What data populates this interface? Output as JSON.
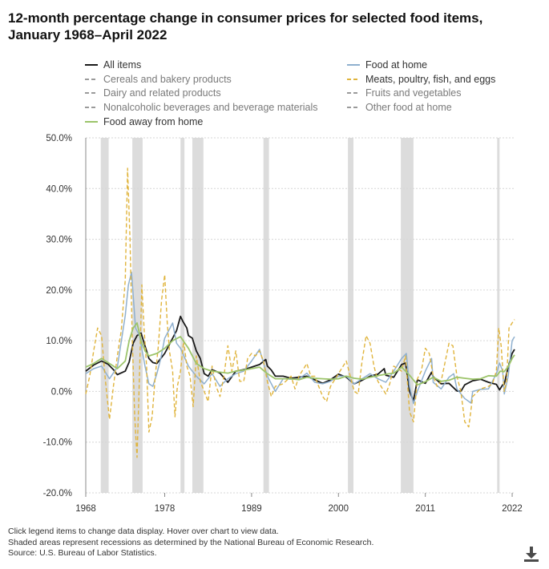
{
  "title": {
    "line1": "12-month percentage change in consumer prices for selected food items,",
    "line2": "January 1968–April 2022"
  },
  "legend": [
    {
      "label": "All items",
      "color": "#1a1a1a",
      "style": "solid",
      "active": true
    },
    {
      "label": "Food at home",
      "color": "#8fb0cf",
      "style": "solid",
      "active": true
    },
    {
      "label": "Cereals and bakery products",
      "color": "#9a9a9a",
      "style": "dashed",
      "active": false
    },
    {
      "label": "Meats, poultry, fish, and eggs",
      "color": "#e0b43c",
      "style": "dashed",
      "active": true
    },
    {
      "label": "Dairy and related products",
      "color": "#9a9a9a",
      "style": "dashed",
      "active": false
    },
    {
      "label": "Fruits and vegetables",
      "color": "#9a9a9a",
      "style": "dashed",
      "active": false
    },
    {
      "label": "Nonalcoholic beverages and beverage materials",
      "color": "#9a9a9a",
      "style": "dashed",
      "active": false
    },
    {
      "label": "Other food at home",
      "color": "#9a9a9a",
      "style": "dashed",
      "active": false
    },
    {
      "label": "Food away from home",
      "color": "#9cc46a",
      "style": "solid",
      "active": true
    }
  ],
  "notes": [
    "Click legend items to change data display. Hover over chart to view data.",
    "Shaded areas represent recessions as determined by the National Bureau of Economic Research.",
    "Source: U.S. Bureau of Labor Statistics."
  ],
  "icons": {
    "download": "download-icon"
  },
  "chart_data": {
    "type": "line",
    "title": "12-month percentage change in consumer prices for selected food items, January 1968–April 2022",
    "ylim": [
      -20,
      50
    ],
    "xlim": [
      1968,
      2022.3
    ],
    "y_ticks": [
      50,
      40,
      30,
      20,
      10,
      0,
      -10,
      -20
    ],
    "y_tick_labels": [
      "50.0%",
      "40.0%",
      "30.0%",
      "20.0%",
      "10.0%",
      "0.0%",
      "-10.0%",
      "-20.0%"
    ],
    "x_ticks": [
      1968,
      1978,
      1989,
      2000,
      2011,
      2022
    ],
    "x_tick_labels": [
      "1968",
      "1978",
      "1989",
      "2000",
      "2011",
      "2022"
    ],
    "recessions": [
      [
        1969.9,
        1970.9
      ],
      [
        1973.9,
        1975.2
      ],
      [
        1980.0,
        1980.5
      ],
      [
        1981.5,
        1982.9
      ],
      [
        1990.5,
        1991.2
      ],
      [
        2001.2,
        2001.9
      ],
      [
        2007.9,
        2009.5
      ],
      [
        2020.1,
        2020.4
      ]
    ],
    "series": [
      {
        "name": "All items",
        "color": "#1a1a1a",
        "dash": false,
        "width": 1.8,
        "x": [
          1968,
          1969,
          1970,
          1970.8,
          1971.5,
          1972,
          1973,
          1973.5,
          1974,
          1974.5,
          1975,
          1975.5,
          1976,
          1976.5,
          1977,
          1977.5,
          1978,
          1978.5,
          1979,
          1979.5,
          1980,
          1980.3,
          1980.8,
          1981,
          1981.5,
          1982,
          1982.5,
          1983,
          1983.5,
          1984,
          1985,
          1986,
          1987,
          1988,
          1989,
          1990,
          1990.8,
          1991,
          1991.5,
          1992,
          1993,
          1994,
          1995,
          1996,
          1997,
          1998,
          1999,
          2000,
          2001,
          2002,
          2003,
          2004,
          2005,
          2005.8,
          2006,
          2007,
          2008,
          2008.5,
          2009,
          2009.5,
          2010,
          2011,
          2011.8,
          2012,
          2013,
          2014,
          2015,
          2015.5,
          2016,
          2017,
          2018,
          2019,
          2020,
          2020.4,
          2020.8,
          2021,
          2021.3,
          2021.6,
          2022,
          2022.3
        ],
        "values": [
          4.0,
          5.2,
          6.0,
          5.4,
          4.3,
          3.3,
          4.0,
          5.8,
          9.5,
          11.0,
          11.5,
          9.0,
          6.5,
          5.7,
          5.5,
          6.5,
          7.5,
          9.0,
          10.5,
          12.0,
          14.8,
          13.8,
          12.5,
          11.0,
          10.5,
          8.0,
          6.5,
          3.5,
          3.0,
          4.3,
          3.6,
          1.8,
          4.0,
          4.3,
          4.8,
          5.3,
          6.3,
          5.0,
          4.2,
          3.0,
          3.0,
          2.6,
          2.8,
          3.0,
          2.3,
          1.6,
          2.3,
          3.4,
          2.8,
          1.5,
          2.2,
          3.0,
          3.4,
          4.5,
          3.2,
          2.8,
          5.3,
          5.6,
          0.0,
          -1.8,
          2.3,
          1.6,
          3.8,
          2.9,
          1.5,
          1.6,
          0.1,
          0.0,
          1.3,
          2.1,
          2.4,
          1.8,
          1.4,
          0.3,
          1.3,
          1.4,
          3.5,
          5.4,
          7.5,
          8.3
        ]
      },
      {
        "name": "Food at home",
        "color": "#8fb0cf",
        "dash": false,
        "width": 1.5,
        "x": [
          1968,
          1969,
          1970,
          1971,
          1972,
          1973,
          1973.4,
          1973.8,
          1974.3,
          1974.8,
          1975.5,
          1976,
          1976.5,
          1977,
          1977.5,
          1978,
          1978.5,
          1979,
          1979.5,
          1980,
          1981,
          1982,
          1983,
          1984,
          1985,
          1986,
          1987,
          1988,
          1989,
          1990,
          1991,
          1992,
          1993,
          1994,
          1995,
          1996,
          1997,
          1998,
          1999,
          2000,
          2001,
          2002,
          2003,
          2004,
          2005,
          2006,
          2007,
          2008,
          2008.6,
          2009,
          2009.5,
          2010,
          2011,
          2011.8,
          2012,
          2013,
          2014,
          2014.6,
          2015,
          2016,
          2016.8,
          2017,
          2018,
          2019,
          2020,
          2020.4,
          2020.8,
          2021,
          2021.5,
          2022,
          2022.3
        ],
        "values": [
          3.5,
          4.5,
          5.0,
          2.5,
          4.8,
          15.0,
          21.0,
          23.5,
          12.5,
          11.0,
          5.0,
          1.5,
          1.0,
          3.5,
          6.5,
          10.5,
          12.0,
          13.5,
          9.5,
          8.5,
          5.0,
          3.0,
          1.5,
          3.5,
          1.0,
          2.5,
          3.5,
          4.0,
          6.0,
          8.3,
          3.0,
          0.0,
          2.5,
          2.4,
          2.5,
          3.6,
          1.8,
          1.5,
          2.0,
          3.0,
          3.0,
          1.5,
          2.5,
          3.5,
          2.5,
          1.8,
          4.0,
          6.5,
          7.5,
          1.0,
          -2.4,
          0.0,
          4.0,
          6.5,
          1.8,
          0.5,
          2.8,
          3.5,
          0.5,
          -1.4,
          -2.3,
          0.0,
          0.4,
          0.5,
          3.5,
          5.6,
          4.0,
          -0.5,
          3.0,
          10.0,
          10.8
        ]
      },
      {
        "name": "Meats, poultry, fish, and eggs",
        "color": "#e0b43c",
        "dash": true,
        "width": 1.4,
        "x": [
          1968,
          1968.5,
          1969,
          1969.5,
          1970,
          1970.5,
          1971,
          1971.5,
          1972,
          1972.5,
          1973,
          1973.3,
          1973.6,
          1973.9,
          1974.2,
          1974.5,
          1974.8,
          1975.1,
          1975.4,
          1975.7,
          1976,
          1976.4,
          1976.8,
          1977.2,
          1977.6,
          1978,
          1978.3,
          1978.6,
          1979,
          1979.3,
          1979.6,
          1980,
          1980.4,
          1980.8,
          1981.2,
          1981.6,
          1982,
          1982.5,
          1983,
          1983.5,
          1984,
          1984.5,
          1985,
          1985.5,
          1986,
          1986.5,
          1987,
          1987.5,
          1988,
          1988.5,
          1989,
          1989.5,
          1990,
          1990.5,
          1991,
          1991.5,
          1992,
          1993,
          1994,
          1994.5,
          1995,
          1996,
          1996.5,
          1997,
          1998,
          1998.5,
          1999,
          2000,
          2001,
          2002,
          2002.5,
          2003,
          2003.5,
          2004,
          2004.5,
          2005,
          2006,
          2006.5,
          2007,
          2008,
          2008.5,
          2009,
          2009.5,
          2010,
          2010.5,
          2011,
          2011.5,
          2012,
          2012.5,
          2013,
          2014,
          2014.5,
          2015,
          2015.5,
          2016,
          2016.5,
          2017,
          2018,
          2019,
          2019.5,
          2020,
          2020.3,
          2020.6,
          2021,
          2021.3,
          2021.6,
          2022,
          2022.3
        ],
        "values": [
          -0.5,
          3.0,
          8.0,
          12.5,
          11.0,
          2.0,
          -5.5,
          1.0,
          7.0,
          12.0,
          22.0,
          44.0,
          30.0,
          10.0,
          -5.0,
          -13.0,
          3.0,
          21.0,
          12.0,
          5.0,
          -8.0,
          -5.0,
          3.0,
          9.0,
          18.0,
          23.0,
          14.0,
          8.0,
          4.0,
          -5.0,
          1.0,
          4.0,
          10.0,
          5.0,
          3.0,
          -3.0,
          7.0,
          2.0,
          0.0,
          -2.0,
          5.0,
          1.0,
          -1.0,
          3.0,
          9.0,
          4.0,
          8.0,
          2.0,
          2.0,
          6.5,
          7.5,
          7.0,
          8.0,
          6.0,
          2.0,
          -1.0,
          1.0,
          1.5,
          3.0,
          0.5,
          3.0,
          5.5,
          3.0,
          3.0,
          -1.0,
          -2.0,
          1.0,
          3.5,
          6.0,
          0.0,
          -0.5,
          6.0,
          11.0,
          9.5,
          5.0,
          2.0,
          -0.5,
          1.5,
          5.0,
          4.0,
          7.0,
          -4.0,
          -6.0,
          2.5,
          4.0,
          8.5,
          7.5,
          3.0,
          1.0,
          2.0,
          9.5,
          9.0,
          3.0,
          0.0,
          -6.0,
          -7.0,
          -1.0,
          0.5,
          1.0,
          1.5,
          4.0,
          12.5,
          9.0,
          0.0,
          2.0,
          12.5,
          13.5,
          14.2
        ]
      },
      {
        "name": "Food away from home",
        "color": "#9cc46a",
        "dash": false,
        "width": 1.8,
        "x": [
          1968,
          1969,
          1970,
          1971,
          1972,
          1973,
          1973.5,
          1974,
          1974.5,
          1975,
          1975.5,
          1976,
          1977,
          1978,
          1979,
          1980,
          1981,
          1982,
          1983,
          1984,
          1985,
          1986,
          1987,
          1988,
          1989,
          1990,
          1991,
          1992,
          1993,
          1994,
          1995,
          1996,
          1997,
          1998,
          1999,
          2000,
          2001,
          2002,
          2003,
          2004,
          2005,
          2006,
          2007,
          2008,
          2009,
          2010,
          2011,
          2012,
          2013,
          2014,
          2015,
          2016,
          2017,
          2018,
          2019,
          2020,
          2020.5,
          2021,
          2021.5,
          2022,
          2022.3
        ],
        "values": [
          4.8,
          5.5,
          6.5,
          5.5,
          4.5,
          6.0,
          10.0,
          12.5,
          13.5,
          10.0,
          8.0,
          7.0,
          7.5,
          8.5,
          10.0,
          10.8,
          8.5,
          5.5,
          4.5,
          4.0,
          3.8,
          3.6,
          4.0,
          4.2,
          4.5,
          4.8,
          3.5,
          2.5,
          2.5,
          2.5,
          2.3,
          2.8,
          2.6,
          2.5,
          2.4,
          2.5,
          3.0,
          2.6,
          2.4,
          2.8,
          3.1,
          3.4,
          3.6,
          4.8,
          3.2,
          1.3,
          1.9,
          2.8,
          2.0,
          2.2,
          2.8,
          2.6,
          2.4,
          2.5,
          3.1,
          3.0,
          4.0,
          3.9,
          4.9,
          6.5,
          7.2
        ]
      }
    ]
  }
}
